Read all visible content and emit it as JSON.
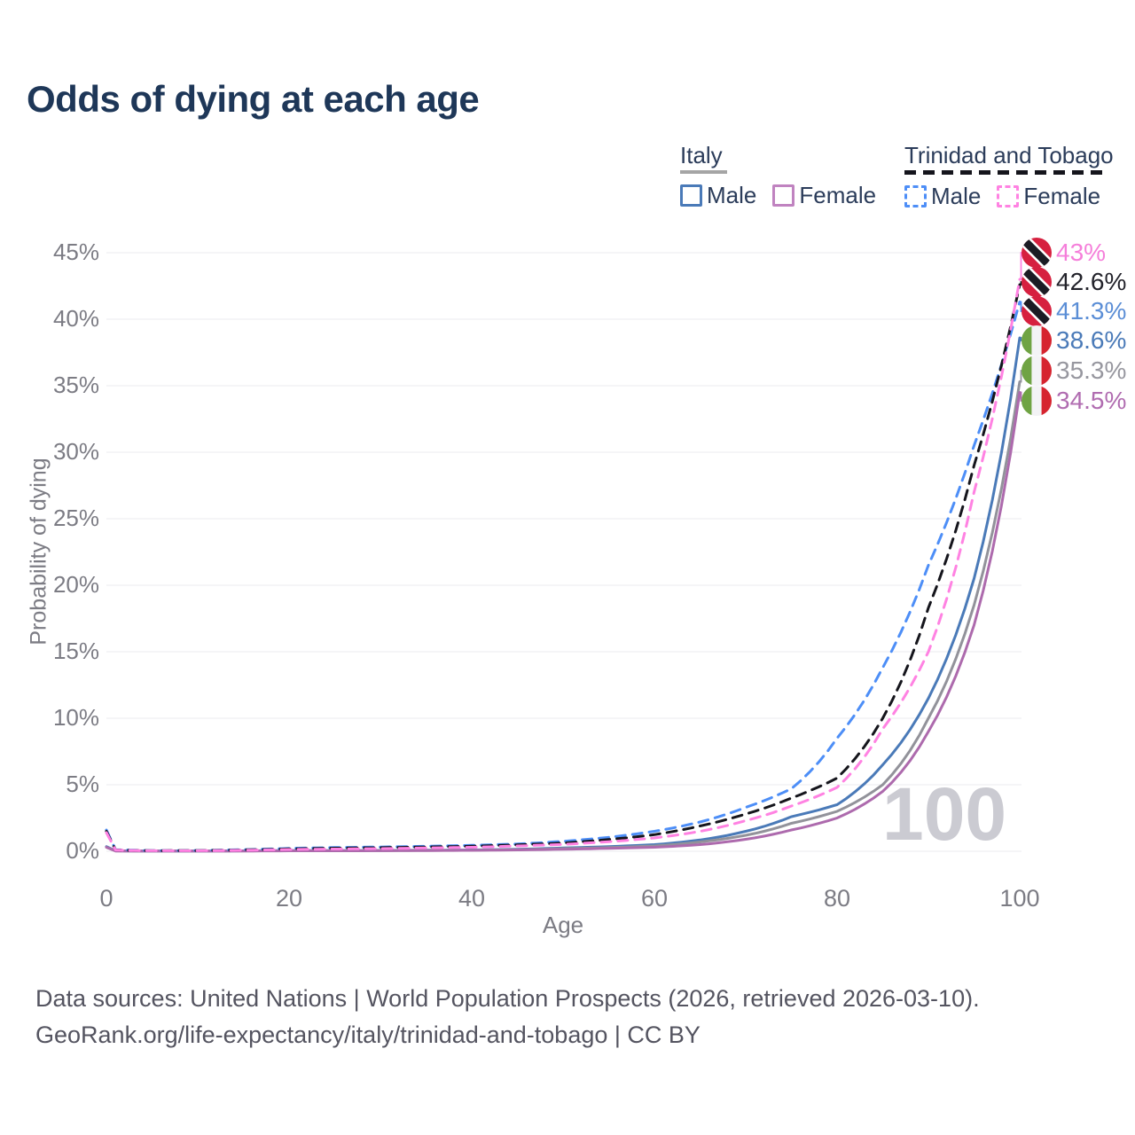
{
  "title": "Odds of dying at each age",
  "watermark": "100",
  "legend": {
    "groups": [
      {
        "label": "Italy",
        "line_style": "solid",
        "underline_color": "#a5a5a5",
        "items": [
          {
            "label": "Male",
            "color": "#4a7ab8"
          },
          {
            "label": "Female",
            "color": "#c083c0"
          }
        ]
      },
      {
        "label": "Trinidad and Tobago",
        "line_style": "dashed",
        "underline_color": "#15151c",
        "items": [
          {
            "label": "Male",
            "color": "#4d8ef7"
          },
          {
            "label": "Female",
            "color": "#ff82e2"
          }
        ]
      }
    ]
  },
  "chart_data": {
    "type": "line",
    "title": "Odds of dying at each age",
    "xlabel": "Age",
    "ylabel": "Probability of dying",
    "xlim": [
      0,
      100
    ],
    "ylim": [
      0,
      45
    ],
    "grid": true,
    "unit": "percent",
    "x_ticks": [
      0,
      20,
      40,
      60,
      80,
      100
    ],
    "y_ticks": [
      "0%",
      "5%",
      "10%",
      "15%",
      "20%",
      "25%",
      "30%",
      "35%",
      "40%",
      "45%"
    ],
    "x": [
      0,
      1,
      5,
      10,
      15,
      20,
      25,
      30,
      35,
      40,
      45,
      50,
      55,
      60,
      65,
      70,
      75,
      80,
      85,
      90,
      95,
      100
    ],
    "series": [
      {
        "name": "Italy Male",
        "country": "Italy",
        "sex": "Male",
        "color": "#4a7ab8",
        "dash": "solid",
        "end_label": "38.6%",
        "values": [
          0.35,
          0.03,
          0.01,
          0.01,
          0.03,
          0.05,
          0.05,
          0.06,
          0.08,
          0.1,
          0.15,
          0.25,
          0.35,
          0.5,
          0.85,
          1.5,
          2.6,
          3.5,
          6.5,
          11.5,
          20.5,
          38.6
        ]
      },
      {
        "name": "Italy Both sexes",
        "country": "Italy",
        "sex": "Both",
        "color": "#92929a",
        "dash": "solid",
        "end_label": "35.3%",
        "values": [
          0.3,
          0.025,
          0.01,
          0.01,
          0.025,
          0.04,
          0.04,
          0.05,
          0.06,
          0.08,
          0.12,
          0.2,
          0.28,
          0.4,
          0.7,
          1.2,
          2.1,
          3.0,
          5.0,
          10.0,
          18.5,
          35.3
        ]
      },
      {
        "name": "Italy Female",
        "country": "Italy",
        "sex": "Female",
        "color": "#ad6aad",
        "dash": "solid",
        "end_label": "34.5%",
        "values": [
          0.3,
          0.02,
          0.01,
          0.01,
          0.02,
          0.03,
          0.03,
          0.04,
          0.05,
          0.07,
          0.1,
          0.15,
          0.22,
          0.3,
          0.5,
          0.9,
          1.6,
          2.5,
          4.5,
          9.0,
          17.0,
          34.5
        ]
      },
      {
        "name": "Trinidad and Tobago Male",
        "country": "Trinidad and Tobago",
        "sex": "Male",
        "color": "#4d8ef7",
        "dash": "dashed",
        "end_label": "41.3%",
        "values": [
          1.6,
          0.12,
          0.05,
          0.06,
          0.12,
          0.22,
          0.28,
          0.32,
          0.38,
          0.45,
          0.55,
          0.75,
          1.05,
          1.5,
          2.2,
          3.3,
          4.7,
          8.5,
          13.8,
          21.5,
          30.5,
          41.3
        ]
      },
      {
        "name": "Trinidad and Tobago Both sexes",
        "country": "Trinidad and Tobago",
        "sex": "Both",
        "color": "#15151c",
        "dash": "dashed",
        "end_label": "42.6%",
        "values": [
          1.5,
          0.1,
          0.04,
          0.05,
          0.1,
          0.18,
          0.23,
          0.27,
          0.32,
          0.38,
          0.48,
          0.62,
          0.88,
          1.25,
          1.9,
          2.8,
          4.0,
          5.5,
          10.0,
          18.3,
          29.0,
          42.6
        ]
      },
      {
        "name": "Trinidad and Tobago Female",
        "country": "Trinidad and Tobago",
        "sex": "Female",
        "color": "#ff82e2",
        "dash": "dashed",
        "end_label": "43%",
        "values": [
          1.4,
          0.09,
          0.04,
          0.04,
          0.08,
          0.13,
          0.17,
          0.2,
          0.25,
          0.3,
          0.4,
          0.52,
          0.72,
          1.0,
          1.5,
          2.3,
          3.4,
          4.8,
          9.2,
          15.0,
          27.0,
          43.0
        ]
      }
    ]
  },
  "end_labels": [
    {
      "value": "43%",
      "color": "#f57fda",
      "flag": "trinidad-and-tobago",
      "series_index": 5
    },
    {
      "value": "42.6%",
      "color": "#23232b",
      "flag": "trinidad-and-tobago",
      "series_index": 4
    },
    {
      "value": "41.3%",
      "color": "#5b8ed6",
      "flag": "trinidad-and-tobago",
      "series_index": 3
    },
    {
      "value": "38.6%",
      "color": "#4a7ab8",
      "flag": "italy",
      "series_index": 0
    },
    {
      "value": "35.3%",
      "color": "#97979f",
      "flag": "italy",
      "series_index": 1
    },
    {
      "value": "34.5%",
      "color": "#b06cb0",
      "flag": "italy",
      "series_index": 2
    }
  ],
  "flags": {
    "trinidad_and_tobago": {
      "red": "#d6203f",
      "black": "#1c1c24",
      "white": "#ffffff"
    },
    "italy": {
      "green": "#6fa343",
      "white": "#f3f3f5",
      "red": "#d6242f"
    }
  },
  "footer": {
    "line1": "Data sources: United Nations | World Population Prospects (2026, retrieved 2026-03-10).",
    "line2": "GeoRank.org/life-expectancy/italy/trinidad-and-tobago | CC BY"
  }
}
